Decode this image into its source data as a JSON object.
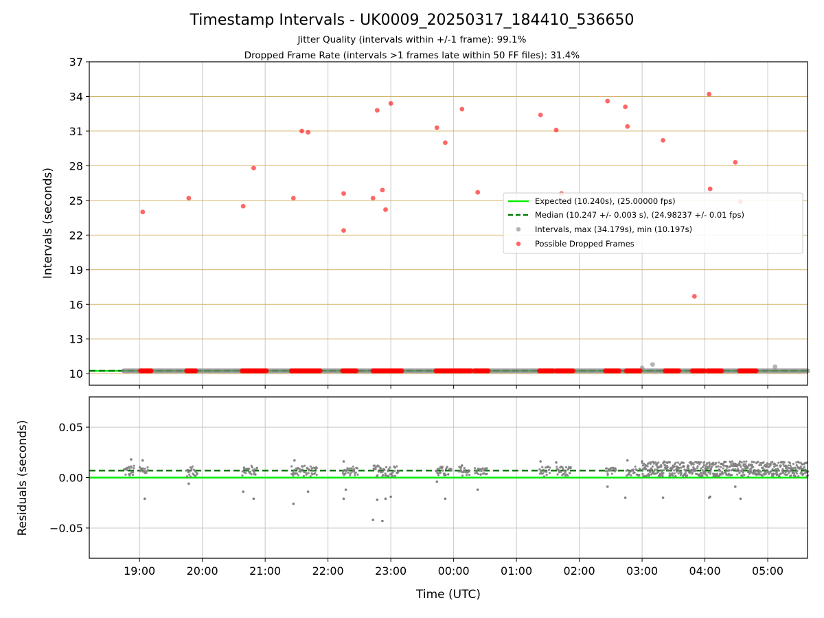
{
  "title": "Timestamp Intervals - UK0009_20250317_184410_536650",
  "subtitle_1": "Jitter Quality (intervals within +/-1 frame): 99.1%",
  "subtitle_2": "Dropped Frame Rate (intervals >1 frames late within 50 FF files): 31.4%",
  "colors": {
    "expected": "#00ee00",
    "median": "#007700",
    "interval": "#808080",
    "dropped": "#ff0000",
    "hgrid_top": "#d4b46a",
    "grid": "#c8c8c8"
  },
  "chart_data": [
    {
      "type": "scatter",
      "id": "intervals",
      "ylabel": "Intervals (seconds)",
      "ylim": [
        9,
        37
      ],
      "yticks": [
        "10",
        "13",
        "16",
        "19",
        "22",
        "25",
        "28",
        "31",
        "34",
        "37"
      ],
      "xlim": [
        "18:12",
        "05:38"
      ],
      "grid": true,
      "legend_position": "center-right",
      "legend": [
        "Expected (10.240s), (25.00000 fps)",
        "Median (10.247 +/- 0.003 s), (24.98237 +/- 0.01 fps)",
        "Intervals, max (34.179s), min (10.197s)",
        "Possible Dropped Frames"
      ],
      "expected": 10.24,
      "median": 10.247,
      "intervals_band": {
        "x_start": "18:45",
        "x_end": "05:38",
        "y": 10.247
      },
      "intervals_outliers": [
        {
          "x": "03:00",
          "y": 10.5
        },
        {
          "x": "03:10",
          "y": 10.8
        },
        {
          "x": "05:07",
          "y": 10.6
        }
      ],
      "dropped_frames": [
        {
          "x": "19:03",
          "y": 24.0
        },
        {
          "x": "19:47",
          "y": 25.2
        },
        {
          "x": "20:39",
          "y": 24.5
        },
        {
          "x": "20:49",
          "y": 27.8
        },
        {
          "x": "21:27",
          "y": 25.2
        },
        {
          "x": "21:35",
          "y": 31.0
        },
        {
          "x": "21:41",
          "y": 30.9
        },
        {
          "x": "22:15",
          "y": 22.4
        },
        {
          "x": "22:15",
          "y": 25.6
        },
        {
          "x": "22:43",
          "y": 25.2
        },
        {
          "x": "22:47",
          "y": 32.8
        },
        {
          "x": "22:52",
          "y": 25.9
        },
        {
          "x": "22:55",
          "y": 24.2
        },
        {
          "x": "23:00",
          "y": 33.4
        },
        {
          "x": "23:44",
          "y": 31.3
        },
        {
          "x": "23:52",
          "y": 30.0
        },
        {
          "x": "00:08",
          "y": 32.9
        },
        {
          "x": "00:23",
          "y": 25.7
        },
        {
          "x": "01:23",
          "y": 32.4
        },
        {
          "x": "01:38",
          "y": 31.1
        },
        {
          "x": "01:43",
          "y": 25.6
        },
        {
          "x": "02:27",
          "y": 33.6
        },
        {
          "x": "02:44",
          "y": 33.1
        },
        {
          "x": "02:46",
          "y": 31.4
        },
        {
          "x": "03:20",
          "y": 30.2
        },
        {
          "x": "03:50",
          "y": 16.7
        },
        {
          "x": "04:04",
          "y": 34.2
        },
        {
          "x": "04:05",
          "y": 26.0
        },
        {
          "x": "04:29",
          "y": 28.3
        },
        {
          "x": "04:34",
          "y": 24.9
        }
      ],
      "dropped_baseline_clusters": [
        [
          "19:01",
          "19:12"
        ],
        [
          "19:45",
          "19:55"
        ],
        [
          "20:38",
          "21:02"
        ],
        [
          "21:25",
          "21:53"
        ],
        [
          "22:14",
          "22:28"
        ],
        [
          "22:43",
          "23:11"
        ],
        [
          "23:43",
          "24:05"
        ],
        [
          "24:05",
          "24:17"
        ],
        [
          "24:20",
          "24:33"
        ],
        [
          "25:22",
          "25:35"
        ],
        [
          "25:38",
          "25:55"
        ],
        [
          "26:25",
          "26:38"
        ],
        [
          "26:45",
          "26:58"
        ],
        [
          "27:22",
          "27:35"
        ],
        [
          "27:48",
          "28:00"
        ],
        [
          "28:03",
          "28:17"
        ],
        [
          "28:33",
          "28:50"
        ]
      ]
    },
    {
      "type": "scatter",
      "id": "residuals",
      "xlabel": "Time (UTC)",
      "ylabel": "Residuals (seconds)",
      "ylim": [
        -0.08,
        0.08
      ],
      "yticks": [
        "−0.05",
        "0.00",
        "0.05"
      ],
      "ytick_values": [
        -0.05,
        0,
        0.05
      ],
      "xticks": [
        "19:00",
        "20:00",
        "21:00",
        "22:00",
        "23:00",
        "00:00",
        "01:00",
        "02:00",
        "03:00",
        "04:00",
        "05:00"
      ],
      "grid": true,
      "expected": 0.0,
      "median": 0.007,
      "clusters": [
        {
          "x": [
            "18:45",
            "18:55"
          ],
          "ymin": 0.001,
          "ymax": 0.012
        },
        {
          "x": [
            "19:00",
            "19:08"
          ],
          "ymin": 0.002,
          "ymax": 0.012
        },
        {
          "x": [
            "19:45",
            "19:55"
          ],
          "ymin": 0.001,
          "ymax": 0.011
        },
        {
          "x": [
            "20:38",
            "20:52"
          ],
          "ymin": 0.002,
          "ymax": 0.012
        },
        {
          "x": [
            "21:25",
            "21:50"
          ],
          "ymin": 0.001,
          "ymax": 0.012
        },
        {
          "x": [
            "22:14",
            "22:28"
          ],
          "ymin": 0.002,
          "ymax": 0.011
        },
        {
          "x": [
            "22:43",
            "23:08"
          ],
          "ymin": 0.001,
          "ymax": 0.012
        },
        {
          "x": [
            "23:43",
            "23:58"
          ],
          "ymin": 0.001,
          "ymax": 0.011
        },
        {
          "x": [
            "24:05",
            "24:15"
          ],
          "ymin": 0.002,
          "ymax": 0.011
        },
        {
          "x": [
            "24:20",
            "24:32"
          ],
          "ymin": 0.002,
          "ymax": 0.01
        },
        {
          "x": [
            "25:22",
            "25:32"
          ],
          "ymin": 0.001,
          "ymax": 0.011
        },
        {
          "x": [
            "25:38",
            "25:52"
          ],
          "ymin": 0.001,
          "ymax": 0.011
        },
        {
          "x": [
            "26:25",
            "26:35"
          ],
          "ymin": 0.002,
          "ymax": 0.01
        },
        {
          "x": [
            "26:45",
            "26:58"
          ],
          "ymin": 0.002,
          "ymax": 0.012
        },
        {
          "x": [
            "27:00",
            "29:38"
          ],
          "ymin": 0.001,
          "ymax": 0.016
        }
      ],
      "outliers": [
        {
          "x": "18:52",
          "y": 0.018
        },
        {
          "x": "19:05",
          "y": -0.021
        },
        {
          "x": "19:03",
          "y": 0.017
        },
        {
          "x": "19:47",
          "y": -0.006
        },
        {
          "x": "20:39",
          "y": -0.014
        },
        {
          "x": "20:49",
          "y": -0.021
        },
        {
          "x": "21:27",
          "y": -0.026
        },
        {
          "x": "21:28",
          "y": 0.017
        },
        {
          "x": "21:41",
          "y": -0.014
        },
        {
          "x": "22:15",
          "y": -0.021
        },
        {
          "x": "22:17",
          "y": -0.012
        },
        {
          "x": "22:15",
          "y": 0.016
        },
        {
          "x": "22:47",
          "y": -0.022
        },
        {
          "x": "22:43",
          "y": -0.042
        },
        {
          "x": "22:52",
          "y": -0.043
        },
        {
          "x": "22:55",
          "y": -0.021
        },
        {
          "x": "23:00",
          "y": -0.019
        },
        {
          "x": "23:44",
          "y": -0.004
        },
        {
          "x": "23:52",
          "y": -0.021
        },
        {
          "x": "00:08",
          "y": 0.012
        },
        {
          "x": "00:23",
          "y": -0.012
        },
        {
          "x": "01:23",
          "y": 0.016
        },
        {
          "x": "01:38",
          "y": 0.015
        },
        {
          "x": "02:27",
          "y": -0.009
        },
        {
          "x": "02:44",
          "y": -0.02
        },
        {
          "x": "02:46",
          "y": 0.017
        },
        {
          "x": "03:00",
          "y": 0.016
        },
        {
          "x": "03:20",
          "y": -0.02
        },
        {
          "x": "04:04",
          "y": -0.02
        },
        {
          "x": "04:05",
          "y": -0.019
        },
        {
          "x": "04:29",
          "y": -0.009
        },
        {
          "x": "04:34",
          "y": -0.021
        }
      ]
    }
  ]
}
